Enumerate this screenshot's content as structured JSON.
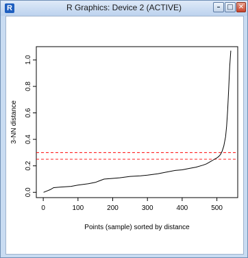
{
  "window": {
    "title": "R Graphics: Device 2 (ACTIVE)",
    "app_icon": "r-icon",
    "buttons": {
      "minimize_icon": "minimize-icon",
      "maximize_icon": "maximize-icon",
      "close_icon": "close-icon"
    }
  },
  "chart_data": {
    "type": "line",
    "xlabel": "Points (sample) sorted by distance",
    "ylabel": "3-NN distance",
    "xlim": [
      -20,
      560
    ],
    "ylim": [
      -0.04,
      1.1
    ],
    "xticks": [
      0,
      100,
      200,
      300,
      400,
      500
    ],
    "yticks": [
      0.0,
      0.2,
      0.4,
      0.6,
      0.8,
      1.0
    ],
    "xtick_labels": [
      "0",
      "100",
      "200",
      "300",
      "400",
      "500"
    ],
    "ytick_labels": [
      "0.0",
      "0.2",
      "0.4",
      "0.6",
      "0.8",
      "1.0"
    ],
    "grid": false,
    "series": [
      {
        "color": "#000000",
        "x": [
          1,
          10,
          20,
          30,
          50,
          80,
          100,
          130,
          150,
          160,
          175,
          200,
          220,
          250,
          280,
          300,
          330,
          350,
          380,
          400,
          420,
          440,
          460,
          470,
          480,
          490,
          500,
          505,
          510,
          515,
          520,
          525,
          528,
          531,
          534,
          537,
          540
        ],
        "y": [
          0.0,
          0.01,
          0.02,
          0.035,
          0.04,
          0.045,
          0.055,
          0.065,
          0.075,
          0.085,
          0.1,
          0.105,
          0.11,
          0.12,
          0.125,
          0.13,
          0.14,
          0.15,
          0.165,
          0.17,
          0.18,
          0.19,
          0.205,
          0.215,
          0.23,
          0.245,
          0.26,
          0.27,
          0.285,
          0.31,
          0.35,
          0.42,
          0.5,
          0.62,
          0.78,
          0.95,
          1.07
        ]
      }
    ],
    "hlines": [
      {
        "y": 0.3,
        "color": "#ff0000",
        "style": "dashed"
      },
      {
        "y": 0.25,
        "color": "#ff0000",
        "style": "dashed"
      }
    ]
  }
}
